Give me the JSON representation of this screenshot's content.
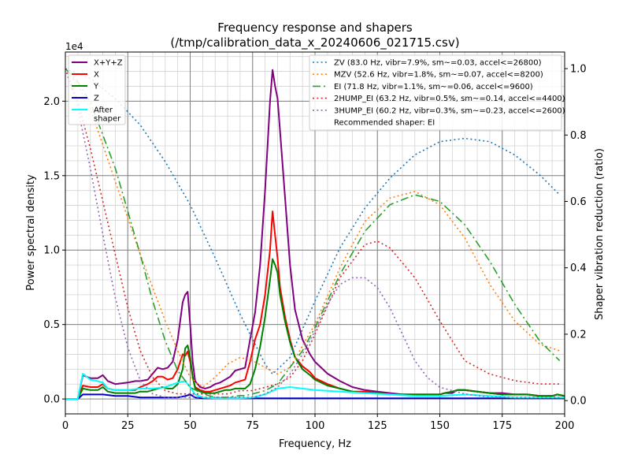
{
  "chart_data": {
    "type": "line",
    "title": "Frequency response and shapers",
    "subtitle": "(/tmp/calibration_data_x_20240606_021715.csv)",
    "xlabel": "Frequency, Hz",
    "ylabel_left": "Power spectral density",
    "ylabel_right": "Shaper vibration reduction (ratio)",
    "offset_label": "1e4",
    "xlim": [
      0,
      200
    ],
    "ylim_left": [
      -0.1,
      2.33
    ],
    "ylim_right": [
      -0.04,
      1.05
    ],
    "xticks": [
      0,
      25,
      50,
      75,
      100,
      125,
      150,
      175,
      200
    ],
    "xtick_labels": [
      "0",
      "25",
      "50",
      "75",
      "100",
      "125",
      "150",
      "175",
      "200"
    ],
    "yticks_left": [
      0,
      0.5,
      1.0,
      1.5,
      2.0
    ],
    "ytick_labels_left": [
      "0.0",
      "0.5",
      "1.0",
      "1.5",
      "2.0"
    ],
    "yticks_right": [
      0,
      0.2,
      0.4,
      0.6,
      0.8,
      1.0
    ],
    "ytick_labels_right": [
      "0.0",
      "0.2",
      "0.4",
      "0.6",
      "0.8",
      "1.0"
    ],
    "grid": true,
    "minor_grid_step_x": 5,
    "minor_grid_step_y": 0.1,
    "legend_left_placement": "top-left",
    "legend_right_placement": "top-right",
    "recommended_note": "Recommended shaper: EI",
    "psd_series": [
      {
        "name": "X+Y+Z",
        "color": "#800080",
        "x": [
          0,
          5,
          7,
          10,
          13,
          15,
          17,
          20,
          25,
          28,
          30,
          33,
          35,
          37,
          39,
          41,
          43,
          45,
          47,
          48,
          49,
          50,
          51,
          52,
          54,
          56,
          58,
          60,
          62,
          64,
          66,
          68,
          70,
          72,
          74,
          76,
          78,
          80,
          82,
          83,
          84,
          85,
          86,
          88,
          90,
          92,
          95,
          98,
          100,
          105,
          110,
          115,
          120,
          125,
          130,
          135,
          140,
          145,
          150,
          152,
          155,
          157,
          160,
          165,
          170,
          175,
          180,
          185,
          190,
          195,
          197,
          200
        ],
        "y": [
          0,
          0,
          0.16,
          0.14,
          0.14,
          0.16,
          0.12,
          0.1,
          0.11,
          0.12,
          0.12,
          0.13,
          0.17,
          0.21,
          0.2,
          0.21,
          0.25,
          0.4,
          0.65,
          0.7,
          0.72,
          0.5,
          0.25,
          0.12,
          0.08,
          0.07,
          0.08,
          0.1,
          0.11,
          0.13,
          0.15,
          0.19,
          0.2,
          0.21,
          0.4,
          0.58,
          0.9,
          1.4,
          2.0,
          2.21,
          2.1,
          2.02,
          1.8,
          1.35,
          0.9,
          0.6,
          0.4,
          0.3,
          0.25,
          0.17,
          0.12,
          0.08,
          0.06,
          0.05,
          0.04,
          0.03,
          0.03,
          0.03,
          0.03,
          0.04,
          0.04,
          0.06,
          0.06,
          0.05,
          0.04,
          0.04,
          0.03,
          0.03,
          0.02,
          0.02,
          0.03,
          0.02
        ]
      },
      {
        "name": "X",
        "color": "#ff0000",
        "x": [
          0,
          5,
          7,
          10,
          13,
          15,
          17,
          20,
          25,
          28,
          30,
          33,
          35,
          37,
          39,
          41,
          43,
          45,
          47,
          48,
          49,
          50,
          51,
          52,
          54,
          56,
          58,
          60,
          62,
          64,
          66,
          68,
          70,
          72,
          74,
          76,
          78,
          80,
          82,
          83,
          84,
          85,
          86,
          88,
          90,
          92,
          95,
          98,
          100,
          105,
          110,
          115,
          120,
          125,
          130,
          135,
          140,
          145,
          150,
          152,
          155,
          157,
          160,
          165,
          170,
          175,
          180,
          185,
          190,
          195,
          197,
          200
        ],
        "y": [
          0,
          0,
          0.09,
          0.08,
          0.08,
          0.1,
          0.07,
          0.06,
          0.06,
          0.06,
          0.08,
          0.1,
          0.12,
          0.15,
          0.15,
          0.13,
          0.14,
          0.2,
          0.3,
          0.29,
          0.32,
          0.25,
          0.15,
          0.08,
          0.06,
          0.05,
          0.05,
          0.06,
          0.07,
          0.08,
          0.09,
          0.11,
          0.12,
          0.13,
          0.25,
          0.4,
          0.5,
          0.7,
          1.0,
          1.26,
          1.1,
          0.95,
          0.75,
          0.55,
          0.4,
          0.28,
          0.22,
          0.18,
          0.14,
          0.1,
          0.07,
          0.05,
          0.05,
          0.04,
          0.03,
          0.03,
          0.03,
          0.03,
          0.03,
          0.04,
          0.05,
          0.06,
          0.06,
          0.05,
          0.04,
          0.03,
          0.03,
          0.03,
          0.02,
          0.02,
          0.03,
          0.02
        ]
      },
      {
        "name": "Y",
        "color": "#008000",
        "x": [
          0,
          5,
          7,
          10,
          13,
          15,
          17,
          20,
          25,
          28,
          30,
          33,
          35,
          37,
          39,
          41,
          43,
          45,
          47,
          48,
          49,
          50,
          51,
          52,
          54,
          56,
          58,
          60,
          62,
          64,
          66,
          68,
          70,
          72,
          74,
          76,
          78,
          80,
          82,
          83,
          84,
          85,
          86,
          88,
          90,
          92,
          95,
          98,
          100,
          105,
          110,
          115,
          120,
          125,
          130,
          135,
          140,
          145,
          150,
          152,
          155,
          157,
          160,
          165,
          170,
          175,
          180,
          185,
          190,
          195,
          197,
          200
        ],
        "y": [
          0,
          0,
          0.07,
          0.06,
          0.06,
          0.08,
          0.05,
          0.04,
          0.04,
          0.04,
          0.05,
          0.05,
          0.06,
          0.07,
          0.08,
          0.07,
          0.07,
          0.1,
          0.2,
          0.34,
          0.36,
          0.28,
          0.15,
          0.07,
          0.05,
          0.04,
          0.04,
          0.04,
          0.05,
          0.06,
          0.06,
          0.07,
          0.07,
          0.07,
          0.1,
          0.2,
          0.35,
          0.55,
          0.8,
          0.94,
          0.9,
          0.85,
          0.7,
          0.52,
          0.38,
          0.28,
          0.2,
          0.16,
          0.13,
          0.09,
          0.07,
          0.05,
          0.04,
          0.04,
          0.03,
          0.03,
          0.03,
          0.03,
          0.03,
          0.04,
          0.05,
          0.06,
          0.06,
          0.05,
          0.04,
          0.03,
          0.03,
          0.03,
          0.02,
          0.02,
          0.03,
          0.02
        ]
      },
      {
        "name": "Z",
        "color": "#0000cd",
        "x": [
          0,
          5,
          7,
          10,
          15,
          20,
          25,
          30,
          40,
          45,
          48,
          50,
          52,
          55,
          60,
          70,
          80,
          85,
          90,
          100,
          150,
          200
        ],
        "y": [
          0,
          0,
          0.03,
          0.03,
          0.03,
          0.02,
          0.02,
          0.01,
          0.01,
          0.01,
          0.02,
          0.03,
          0.01,
          0.005,
          0.005,
          0.005,
          0.005,
          0.005,
          0.005,
          0.005,
          0.005,
          0.005
        ]
      },
      {
        "name": "After\nshaper",
        "color": "#00ffff",
        "x": [
          0,
          5,
          7,
          10,
          13,
          15,
          17,
          20,
          25,
          30,
          35,
          40,
          45,
          48,
          50,
          52,
          55,
          60,
          65,
          70,
          75,
          80,
          85,
          90,
          95,
          100,
          110,
          120,
          130,
          140,
          150,
          160,
          170,
          180,
          190,
          200
        ],
        "y": [
          0,
          0,
          0.17,
          0.13,
          0.12,
          0.11,
          0.07,
          0.06,
          0.06,
          0.07,
          0.07,
          0.08,
          0.11,
          0.12,
          0.08,
          0.03,
          0.01,
          0.005,
          0.005,
          0.005,
          0.01,
          0.03,
          0.07,
          0.08,
          0.07,
          0.06,
          0.05,
          0.04,
          0.03,
          0.02,
          0.02,
          0.03,
          0.02,
          0.01,
          0.01,
          0.01
        ]
      }
    ],
    "shaper_series": [
      {
        "name": "ZV (83.0 Hz, vibr=7.9%, sm~=0.03, accel<=26800)",
        "color": "#1f77b4",
        "dash": "dotted",
        "x": [
          0,
          10,
          20,
          30,
          40,
          50,
          60,
          70,
          80,
          83,
          90,
          100,
          110,
          120,
          130,
          140,
          150,
          160,
          170,
          180,
          190,
          198
        ],
        "y": [
          1.0,
          0.97,
          0.91,
          0.83,
          0.72,
          0.59,
          0.43,
          0.26,
          0.11,
          0.08,
          0.13,
          0.3,
          0.46,
          0.58,
          0.67,
          0.74,
          0.78,
          0.79,
          0.78,
          0.74,
          0.68,
          0.62
        ]
      },
      {
        "name": "MZV (52.6 Hz, vibr=1.8%, sm~=0.07, accel<=8200)",
        "color": "#ff7f0e",
        "dash": "dotted",
        "x": [
          0,
          5,
          10,
          20,
          30,
          40,
          45,
          50,
          55,
          60,
          65,
          70,
          75,
          80,
          85,
          90,
          100,
          110,
          120,
          130,
          140,
          150,
          160,
          170,
          180,
          190,
          198
        ],
        "y": [
          1.0,
          0.95,
          0.88,
          0.66,
          0.44,
          0.24,
          0.15,
          0.07,
          0.04,
          0.07,
          0.11,
          0.13,
          0.12,
          0.1,
          0.08,
          0.1,
          0.23,
          0.4,
          0.54,
          0.61,
          0.63,
          0.59,
          0.49,
          0.35,
          0.24,
          0.17,
          0.15
        ]
      },
      {
        "name": "EI (71.8 Hz, vibr=1.1%, sm~=0.06, accel<=9600)",
        "color": "#2ca02c",
        "dash": "dashdot",
        "x": [
          0,
          5,
          10,
          15,
          20,
          25,
          30,
          35,
          40,
          45,
          50,
          55,
          60,
          65,
          70,
          72,
          75,
          80,
          85,
          90,
          95,
          100,
          110,
          120,
          130,
          140,
          150,
          160,
          170,
          180,
          190,
          198
        ],
        "y": [
          1.0,
          0.96,
          0.9,
          0.8,
          0.7,
          0.57,
          0.44,
          0.3,
          0.18,
          0.09,
          0.04,
          0.02,
          0.01,
          0.01,
          0.015,
          0.015,
          0.02,
          0.03,
          0.05,
          0.1,
          0.15,
          0.22,
          0.38,
          0.51,
          0.59,
          0.62,
          0.6,
          0.53,
          0.42,
          0.29,
          0.18,
          0.12
        ]
      },
      {
        "name": "2HUMP_EI (63.2 Hz, vibr=0.5%, sm~=0.14, accel<=4400)",
        "color": "#d62728",
        "dash": "dotted",
        "x": [
          0,
          5,
          10,
          15,
          20,
          25,
          30,
          35,
          40,
          45,
          50,
          55,
          60,
          65,
          70,
          75,
          80,
          85,
          90,
          95,
          100,
          110,
          120,
          125,
          130,
          140,
          150,
          160,
          170,
          180,
          190,
          198
        ],
        "y": [
          1.0,
          0.9,
          0.76,
          0.6,
          0.44,
          0.28,
          0.15,
          0.07,
          0.03,
          0.02,
          0.02,
          0.02,
          0.02,
          0.02,
          0.03,
          0.03,
          0.04,
          0.05,
          0.07,
          0.12,
          0.2,
          0.37,
          0.47,
          0.48,
          0.46,
          0.37,
          0.24,
          0.12,
          0.08,
          0.06,
          0.05,
          0.05
        ]
      },
      {
        "name": "3HUMP_EI (60.2 Hz, vibr=0.3%, sm~=0.23, accel<=2600)",
        "color": "#9467bd",
        "dash": "dotted",
        "x": [
          0,
          5,
          10,
          15,
          20,
          25,
          30,
          35,
          40,
          45,
          50,
          55,
          60,
          65,
          70,
          75,
          80,
          85,
          90,
          95,
          100,
          105,
          110,
          115,
          120,
          125,
          130,
          135,
          140,
          145,
          150,
          160,
          170,
          180,
          190,
          198
        ],
        "y": [
          1.0,
          0.88,
          0.7,
          0.5,
          0.31,
          0.16,
          0.06,
          0.02,
          0.01,
          0.01,
          0.01,
          0.01,
          0.01,
          0.01,
          0.01,
          0.01,
          0.02,
          0.04,
          0.08,
          0.14,
          0.21,
          0.29,
          0.35,
          0.37,
          0.37,
          0.34,
          0.28,
          0.2,
          0.12,
          0.07,
          0.04,
          0.02,
          0.01,
          0.01,
          0.01,
          0.01
        ]
      }
    ]
  }
}
